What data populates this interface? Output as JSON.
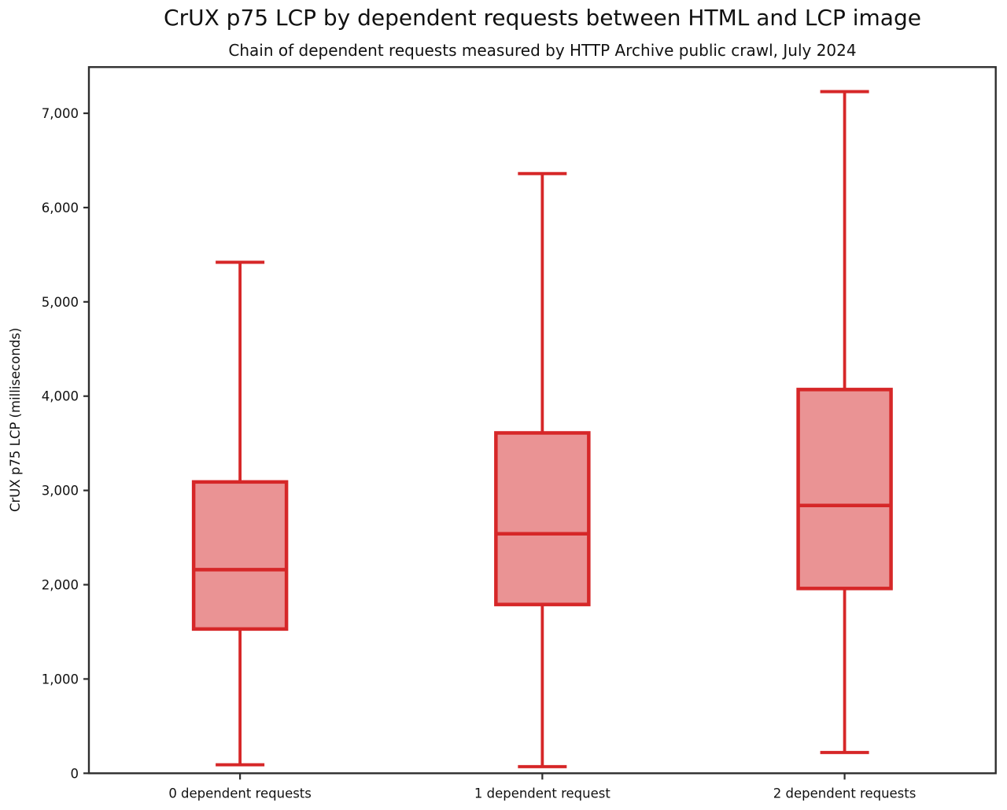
{
  "title": "CrUX p75 LCP by dependent requests between HTML and LCP image",
  "subtitle": "Chain of dependent requests measured by HTTP Archive public crawl, July 2024",
  "chart_data": {
    "type": "boxplot",
    "title": "CrUX p75 LCP by dependent requests between HTML and LCP image",
    "subtitle": "Chain of dependent requests measured by HTTP Archive public crawl, July 2024",
    "xlabel": "",
    "ylabel": "CrUX p75 LCP (milliseconds)",
    "ylim": [
      0,
      7490
    ],
    "grid": false,
    "legend": "none",
    "yticks": [
      0,
      1000,
      2000,
      3000,
      4000,
      5000,
      6000,
      7000
    ],
    "ytick_labels": [
      "0",
      "1,000",
      "2,000",
      "3,000",
      "4,000",
      "5,000",
      "6,000",
      "7,000"
    ],
    "categories": [
      "0 dependent requests",
      "1 dependent request",
      "2 dependent requests"
    ],
    "series": [
      {
        "label": "0 dependent requests",
        "whisker_low": 90,
        "q1": 1530,
        "median": 2160,
        "q3": 3090,
        "whisker_high": 5420
      },
      {
        "label": "1 dependent request",
        "whisker_low": 70,
        "q1": 1790,
        "median": 2540,
        "q3": 3610,
        "whisker_high": 6360
      },
      {
        "label": "2 dependent requests",
        "whisker_low": 220,
        "q1": 1960,
        "median": 2840,
        "q3": 4070,
        "whisker_high": 7230
      }
    ],
    "colors": {
      "box_edge": "#d62728",
      "box_fill": "#ea9394",
      "whisker": "#d62728",
      "median": "#d62728",
      "axis": "#2e2e2e",
      "text": "#111111",
      "background": "#ffffff"
    }
  }
}
